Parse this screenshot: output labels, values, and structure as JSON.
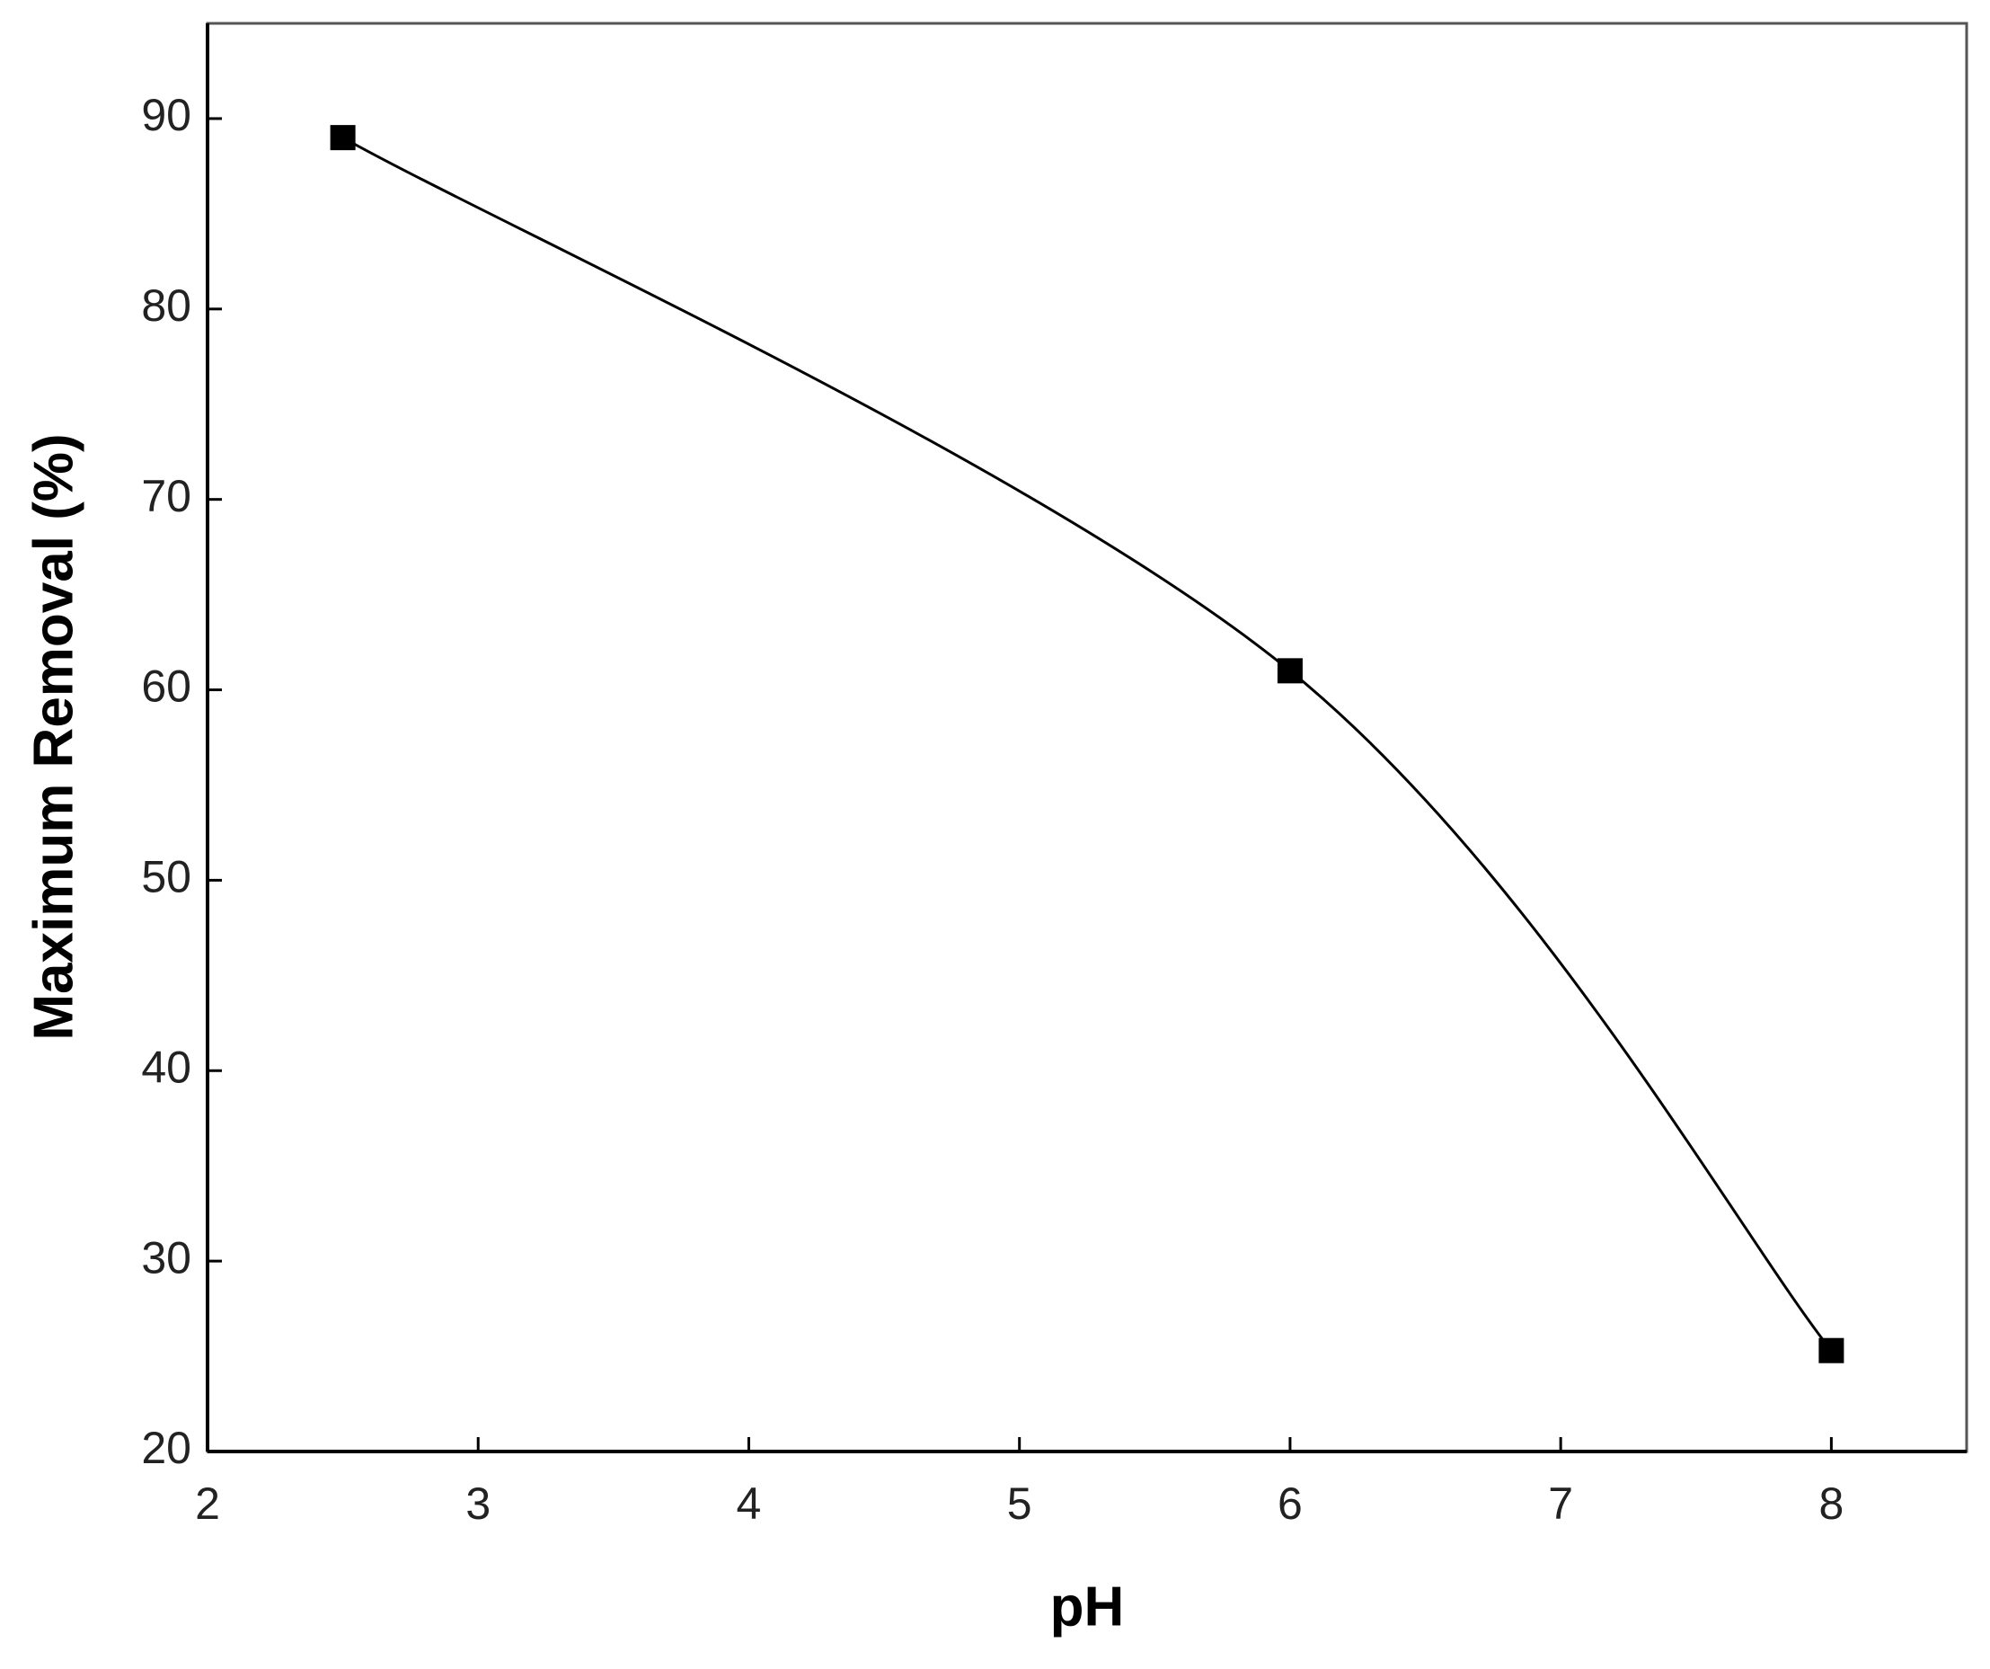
{
  "chart_data": {
    "type": "line",
    "x_label": "pH",
    "y_label": "Maximum Removal (%)",
    "x": [
      2.5,
      6,
      8
    ],
    "series": [
      {
        "values": [
          89,
          61,
          25.3
        ],
        "color": "#000000"
      }
    ],
    "xlim": [
      2,
      8.5
    ],
    "xticks": [
      2,
      3,
      4,
      5,
      6,
      7,
      8
    ],
    "ylim": [
      20,
      95
    ],
    "yticks": [
      20,
      30,
      40,
      50,
      60,
      70,
      80,
      90
    ],
    "grid": false,
    "smooth": true,
    "marker": "square"
  }
}
